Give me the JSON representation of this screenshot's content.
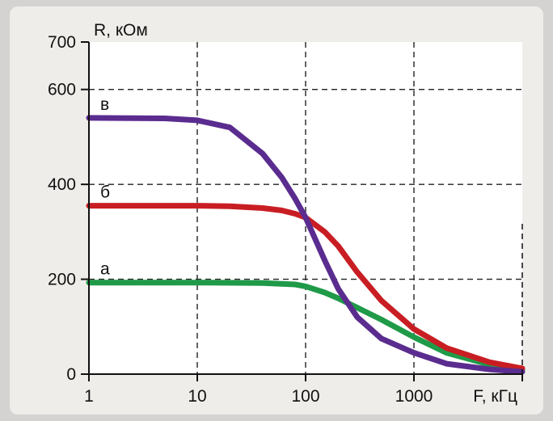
{
  "chart_data": {
    "type": "line",
    "ylabel": "R, кОм",
    "xlabel": "F, кГц",
    "x_scale": "log",
    "xlim": [
      1,
      10000
    ],
    "ylim": [
      0,
      700
    ],
    "grid": true,
    "x_tick_labels": [
      "1",
      "10",
      "100",
      "1000"
    ],
    "y_tick_labels": [
      "0",
      "200",
      "400",
      "600",
      "700"
    ],
    "x_ticks": [
      1,
      10,
      100,
      1000
    ],
    "y_ticks": [
      0,
      200,
      400,
      600,
      700
    ],
    "series": [
      {
        "name": "в",
        "color": "#5b2c8f",
        "x": [
          1,
          5,
          10,
          20,
          40,
          60,
          80,
          100,
          150,
          200,
          300,
          500,
          1000,
          2000,
          5000,
          10000
        ],
        "y": [
          540,
          539,
          535,
          520,
          465,
          415,
          370,
          330,
          240,
          180,
          120,
          75,
          45,
          22,
          10,
          5
        ]
      },
      {
        "name": "б",
        "color": "#c81e23",
        "x": [
          1,
          10,
          20,
          40,
          60,
          80,
          100,
          150,
          200,
          300,
          500,
          1000,
          2000,
          5000,
          10000
        ],
        "y": [
          355,
          355,
          354,
          350,
          345,
          338,
          330,
          300,
          270,
          215,
          155,
          95,
          55,
          25,
          12
        ]
      },
      {
        "name": "а",
        "color": "#1f9a48",
        "x": [
          1,
          10,
          40,
          80,
          100,
          150,
          200,
          300,
          500,
          1000,
          2000,
          5000,
          10000
        ],
        "y": [
          193,
          193,
          192,
          189,
          185,
          172,
          160,
          140,
          115,
          78,
          45,
          20,
          10
        ]
      }
    ]
  }
}
